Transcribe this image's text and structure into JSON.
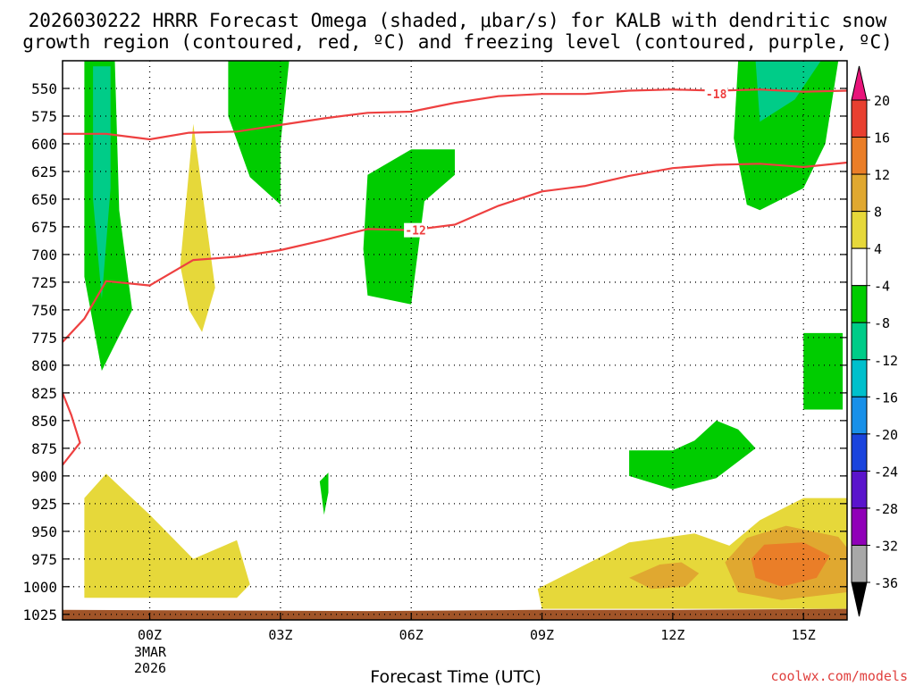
{
  "chart_data": {
    "type": "time-height contour",
    "title_line1": "2026030222 HRRR Forecast Omega (shaded, μbar/s) for KALB with dendritic snow",
    "title_line2": "growth region (contoured, red, ºC) and freezing level (contoured, purple, ºC)",
    "xlabel": "Forecast Time (UTC)",
    "credit": "coolwx.com/models",
    "x_range_hours": [
      -2,
      16
    ],
    "y_range_hpa": [
      1030,
      525
    ],
    "y_ticks": [
      550,
      575,
      600,
      625,
      650,
      675,
      700,
      725,
      750,
      775,
      800,
      825,
      850,
      875,
      900,
      925,
      950,
      975,
      1000,
      1025
    ],
    "x_ticks": [
      {
        "hour": 0,
        "label": "00Z"
      },
      {
        "hour": 3,
        "label": "03Z"
      },
      {
        "hour": 6,
        "label": "06Z"
      },
      {
        "hour": 9,
        "label": "09Z"
      },
      {
        "hour": 12,
        "label": "12Z"
      },
      {
        "hour": 15,
        "label": "15Z"
      }
    ],
    "date_label": [
      "3MAR",
      "2026"
    ],
    "colorbar": {
      "tick_labels": [
        "20",
        "16",
        "12",
        "8",
        "4",
        "-4",
        "-8",
        "-12",
        "-16",
        "-20",
        "-24",
        "-28",
        "-32",
        "-36"
      ],
      "colors": [
        "#e8147a",
        "#e84030",
        "#ea7e28",
        "#e0a830",
        "#e6d83a",
        "#ffffff",
        "#00cc00",
        "#00cc88",
        "#00c0cc",
        "#1890e8",
        "#1a44dd",
        "#5a14cc",
        "#9000b8",
        "#a8a8a8",
        "#000000"
      ]
    },
    "omega_regions": [
      {
        "value_class": "-4 to -8",
        "color": "#00cc00",
        "points": [
          [
            -1.5,
            525
          ],
          [
            -0.8,
            525
          ],
          [
            -0.7,
            660
          ],
          [
            -0.4,
            750
          ],
          [
            -1.1,
            805
          ],
          [
            -1.5,
            720
          ]
        ]
      },
      {
        "value_class": "-8 to -12",
        "color": "#00cc88",
        "points": [
          [
            -1.3,
            530
          ],
          [
            -0.9,
            530
          ],
          [
            -0.9,
            640
          ],
          [
            -1.1,
            740
          ],
          [
            -1.3,
            650
          ]
        ]
      },
      {
        "value_class": "-4 to -8",
        "color": "#00cc00",
        "points": [
          [
            1.8,
            525
          ],
          [
            3.2,
            525
          ],
          [
            3.0,
            600
          ],
          [
            3.0,
            655
          ],
          [
            2.3,
            630
          ],
          [
            1.8,
            575
          ]
        ]
      },
      {
        "value_class": "-4 to -8",
        "color": "#00cc00",
        "points": [
          [
            5.0,
            628
          ],
          [
            6.0,
            605
          ],
          [
            7.0,
            605
          ],
          [
            7.0,
            628
          ],
          [
            6.3,
            652
          ],
          [
            6.0,
            745
          ],
          [
            5.0,
            737
          ],
          [
            4.9,
            695
          ]
        ]
      },
      {
        "value_class": "-4 to -8",
        "color": "#00cc00",
        "points": [
          [
            13.5,
            525
          ],
          [
            15.8,
            525
          ],
          [
            15.5,
            600
          ],
          [
            15.0,
            640
          ],
          [
            14.0,
            660
          ],
          [
            13.7,
            655
          ],
          [
            13.4,
            595
          ]
        ]
      },
      {
        "value_class": "-8 to -12",
        "color": "#00cc88",
        "points": [
          [
            13.9,
            525
          ],
          [
            15.4,
            525
          ],
          [
            14.8,
            560
          ],
          [
            14.0,
            580
          ]
        ]
      },
      {
        "value_class": "-4 to -8",
        "color": "#00cc00",
        "points": [
          [
            15.0,
            771
          ],
          [
            15.9,
            771
          ],
          [
            15.9,
            840
          ],
          [
            15.0,
            840
          ]
        ]
      },
      {
        "value_class": "-4 to -8",
        "color": "#00cc00",
        "points": [
          [
            3.9,
            905
          ],
          [
            4.1,
            897
          ],
          [
            4.1,
            915
          ],
          [
            4.0,
            935
          ]
        ]
      },
      {
        "value_class": "-4 to -8",
        "color": "#00cc00",
        "points": [
          [
            11.0,
            877
          ],
          [
            12.0,
            877
          ],
          [
            12.5,
            868
          ],
          [
            13.0,
            850
          ],
          [
            13.5,
            858
          ],
          [
            13.9,
            875
          ],
          [
            13.0,
            902
          ],
          [
            12.0,
            912
          ],
          [
            11.0,
            900
          ]
        ]
      },
      {
        "value_class": "4 to 8",
        "color": "#e6d83a",
        "points": [
          [
            1.0,
            582
          ],
          [
            1.5,
            730
          ],
          [
            1.2,
            770
          ],
          [
            0.9,
            750
          ],
          [
            0.7,
            710
          ]
        ]
      },
      {
        "value_class": "4 to 8",
        "color": "#e6d83a",
        "points": [
          [
            -1.5,
            920
          ],
          [
            -1.0,
            898
          ],
          [
            0,
            935
          ],
          [
            1.0,
            975
          ],
          [
            2.0,
            958
          ],
          [
            2.3,
            998
          ],
          [
            2.0,
            1010
          ],
          [
            -1.5,
            1010
          ]
        ]
      },
      {
        "value_class": "4 to 8",
        "color": "#e6d83a",
        "points": [
          [
            8.9,
            1002
          ],
          [
            9.5,
            990
          ],
          [
            11.0,
            960
          ],
          [
            12.5,
            952
          ],
          [
            13.3,
            963
          ],
          [
            14.0,
            940
          ],
          [
            15.0,
            920
          ],
          [
            16.0,
            920
          ],
          [
            16.0,
            1020
          ],
          [
            9.0,
            1020
          ]
        ]
      },
      {
        "value_class": "8 to 12",
        "color": "#e0a830",
        "points": [
          [
            11.0,
            992
          ],
          [
            11.7,
            980
          ],
          [
            12.2,
            978
          ],
          [
            12.6,
            988
          ],
          [
            12.3,
            1000
          ],
          [
            11.5,
            1002
          ]
        ]
      },
      {
        "value_class": "8 to 12",
        "color": "#e0a830",
        "points": [
          [
            13.2,
            978
          ],
          [
            13.7,
            956
          ],
          [
            14.6,
            945
          ],
          [
            15.8,
            955
          ],
          [
            16.0,
            965
          ],
          [
            16.0,
            1005
          ],
          [
            14.5,
            1012
          ],
          [
            13.5,
            1005
          ]
        ]
      },
      {
        "value_class": "12 to 16",
        "color": "#ea7e28",
        "points": [
          [
            13.8,
            975
          ],
          [
            14.1,
            962
          ],
          [
            15.0,
            960
          ],
          [
            15.6,
            972
          ],
          [
            15.3,
            992
          ],
          [
            14.5,
            1000
          ],
          [
            13.9,
            992
          ]
        ]
      }
    ],
    "surface_fill": {
      "color": "#a05428",
      "points": [
        [
          -2,
          1021
        ],
        [
          5,
          1022
        ],
        [
          9,
          1021
        ],
        [
          12,
          1021
        ],
        [
          16,
          1020
        ],
        [
          16,
          1031
        ],
        [
          -2,
          1031
        ]
      ]
    },
    "dendritic_contours": [
      {
        "label": "-18",
        "color": "#ee4040",
        "label_at": [
          13.0,
          555
        ],
        "points": [
          [
            -2,
            591
          ],
          [
            -1,
            591
          ],
          [
            0,
            596
          ],
          [
            0.9,
            590
          ],
          [
            2,
            589
          ],
          [
            3,
            583
          ],
          [
            4,
            577
          ],
          [
            5,
            572
          ],
          [
            6,
            571
          ],
          [
            7,
            563
          ],
          [
            8,
            557
          ],
          [
            9,
            555
          ],
          [
            10,
            555
          ],
          [
            11,
            552
          ],
          [
            12,
            551
          ],
          [
            13,
            552
          ],
          [
            14,
            551
          ],
          [
            15,
            553
          ],
          [
            16,
            552
          ]
        ]
      },
      {
        "label": "-12",
        "color": "#ee4040",
        "label_at": [
          6.1,
          678
        ],
        "points": [
          [
            -2,
            779
          ],
          [
            -1.5,
            758
          ],
          [
            -1,
            724
          ],
          [
            0,
            728
          ],
          [
            1,
            705
          ],
          [
            2,
            702
          ],
          [
            3,
            696
          ],
          [
            4,
            687
          ],
          [
            5,
            677
          ],
          [
            6,
            678
          ],
          [
            7,
            673
          ],
          [
            8,
            656
          ],
          [
            9,
            643
          ],
          [
            10,
            638
          ],
          [
            11,
            629
          ],
          [
            12,
            622
          ],
          [
            13,
            619
          ],
          [
            14,
            618
          ],
          [
            15,
            621
          ],
          [
            16,
            617
          ]
        ]
      },
      {
        "label": "",
        "color": "#ee4040",
        "label_at": null,
        "points": [
          [
            -2,
            825
          ],
          [
            -1.8,
            845
          ],
          [
            -1.6,
            870
          ],
          [
            -2,
            890
          ]
        ]
      }
    ]
  }
}
